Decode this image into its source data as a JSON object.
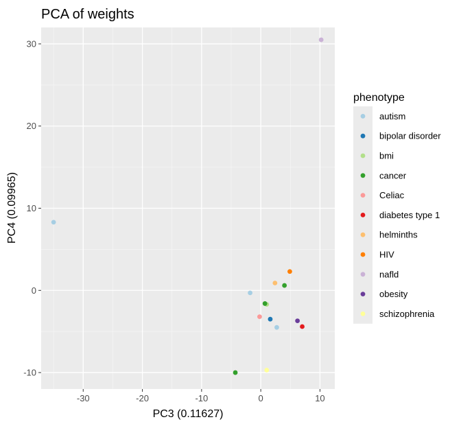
{
  "chart_data": {
    "type": "scatter",
    "title": "PCA of weights",
    "xlabel": "PC3 (0.11627)",
    "ylabel": "PC4 (0.09965)",
    "xlim": [
      -37.1,
      12.5
    ],
    "ylim": [
      -12.0,
      32.0
    ],
    "x_ticks": [
      -30,
      -20,
      -10,
      0,
      10
    ],
    "y_ticks": [
      -10,
      0,
      10,
      20,
      30
    ],
    "grid": true,
    "legend": {
      "title": "phenotype",
      "position": "right"
    },
    "series": [
      {
        "name": "autism",
        "color": "#a6cee3",
        "points": [
          [
            -35.0,
            8.3
          ],
          [
            -1.8,
            -0.3
          ],
          [
            2.7,
            -4.5
          ]
        ]
      },
      {
        "name": "bipolar disorder",
        "color": "#1f78b4",
        "points": [
          [
            1.6,
            -3.5
          ]
        ]
      },
      {
        "name": "bmi",
        "color": "#b2df8a",
        "points": [
          [
            1.0,
            -1.7
          ]
        ]
      },
      {
        "name": "cancer",
        "color": "#33a02c",
        "points": [
          [
            -4.3,
            -10.0
          ],
          [
            0.7,
            -1.6
          ],
          [
            4.0,
            0.6
          ]
        ]
      },
      {
        "name": "Celiac",
        "color": "#fb9a99",
        "points": [
          [
            -0.2,
            -3.2
          ]
        ]
      },
      {
        "name": "diabetes type 1",
        "color": "#e31a1c",
        "points": [
          [
            7.0,
            -4.4
          ]
        ]
      },
      {
        "name": "helminths",
        "color": "#fdbf6f",
        "points": [
          [
            2.4,
            0.9
          ]
        ]
      },
      {
        "name": "HIV",
        "color": "#ff7f00",
        "points": [
          [
            4.9,
            2.3
          ]
        ]
      },
      {
        "name": "nafld",
        "color": "#cab2d6",
        "points": [
          [
            10.2,
            30.5
          ]
        ]
      },
      {
        "name": "obesity",
        "color": "#6a3d9a",
        "points": [
          [
            6.2,
            -3.7
          ]
        ]
      },
      {
        "name": "schizophrenia",
        "color": "#ffff99",
        "points": [
          [
            1.0,
            -9.7
          ]
        ]
      }
    ]
  }
}
